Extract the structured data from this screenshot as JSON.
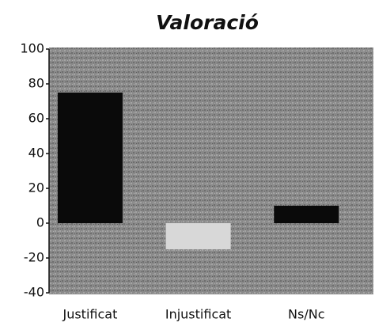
{
  "chart_data": {
    "type": "bar",
    "title": "Valoració",
    "categories": [
      "Justificat",
      "Injustificat",
      "Ns/Nc"
    ],
    "values": [
      75,
      -15,
      10
    ],
    "colors": [
      "#0a0a0a",
      "#d8d8d8",
      "#0a0a0a"
    ],
    "ylim": [
      -40,
      100
    ],
    "yticks": [
      -40,
      -20,
      0,
      20,
      40,
      60,
      80,
      100
    ]
  }
}
